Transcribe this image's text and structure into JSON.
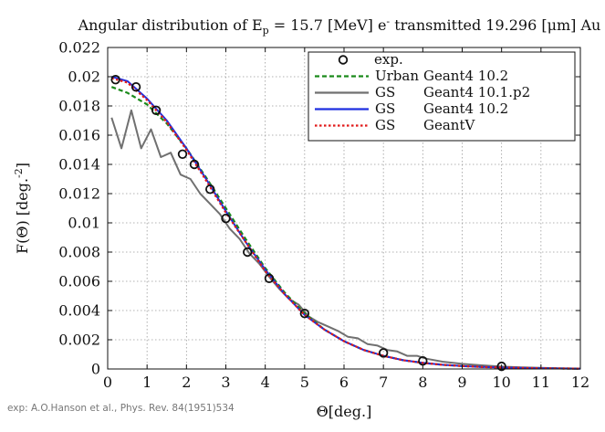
{
  "chart_data": {
    "type": "line",
    "title": {
      "prefix": "Angular distribution of E",
      "sub": "p",
      "middle": " = 15.7 [MeV] e",
      "sup": "-",
      "suffix": " transmitted 19.296 [μm] Au"
    },
    "xlabel": "Θ[deg.]",
    "ylabel": {
      "base": "F(Θ) [deg.",
      "sup": "-2",
      "end": "]"
    },
    "xlim": [
      0,
      12
    ],
    "ylim": [
      0,
      0.022
    ],
    "x_ticks": [
      "0",
      "1",
      "2",
      "3",
      "4",
      "5",
      "6",
      "7",
      "8",
      "9",
      "10",
      "11",
      "12"
    ],
    "y_ticks": [
      "0",
      "0.002",
      "0.004",
      "0.006",
      "0.008",
      "0.01",
      "0.012",
      "0.014",
      "0.016",
      "0.018",
      "0.02",
      "0.022"
    ],
    "grid": true,
    "legend_position": "top-right",
    "reference": "exp: A.O.Hanson et al., Phys. Rev. 84(1951)534",
    "series": [
      {
        "name": "exp.",
        "label_left": "exp.",
        "label_right": "",
        "style": "markers",
        "color": "#111111",
        "x": [
          0.2,
          0.72,
          1.23,
          1.9,
          2.2,
          2.6,
          3.0,
          3.55,
          4.1,
          5.0,
          7.0,
          8.0,
          10.0
        ],
        "y": [
          0.0198,
          0.0193,
          0.0177,
          0.0147,
          0.014,
          0.0123,
          0.0103,
          0.008,
          0.0062,
          0.0038,
          0.0011,
          0.00055,
          0.00018
        ]
      },
      {
        "name": "Urban Geant4 10.2",
        "label_left": "Urban",
        "label_right": "Geant4 10.2",
        "style": "dashed",
        "color": "#1a8a1a",
        "x": [
          0.1,
          0.5,
          1.0,
          1.5,
          2.0,
          2.5,
          3.0,
          3.5,
          4.0,
          4.5,
          5.0,
          5.5,
          6.0,
          6.5,
          7.0,
          7.5,
          8.0,
          8.5,
          9.0,
          9.5,
          10.0,
          11.0,
          12.0
        ],
        "y": [
          0.0193,
          0.0189,
          0.0181,
          0.0168,
          0.0151,
          0.0131,
          0.011,
          0.0089,
          0.0069,
          0.0052,
          0.0038,
          0.0027,
          0.0019,
          0.0013,
          0.0009,
          0.0006,
          0.00042,
          0.00029,
          0.0002,
          0.00014,
          0.0001,
          5e-05,
          2e-05
        ]
      },
      {
        "name": "GS Geant4 10.1.p2",
        "label_left": "GS",
        "label_right": "Geant4 10.1.p2",
        "style": "solid",
        "color": "#707070",
        "x": [
          0.1,
          0.35,
          0.6,
          0.85,
          1.1,
          1.35,
          1.6,
          1.85,
          2.1,
          2.35,
          2.6,
          2.85,
          3.1,
          3.35,
          3.6,
          3.85,
          4.1,
          4.35,
          4.6,
          4.85,
          5.1,
          5.35,
          5.6,
          5.85,
          6.1,
          6.35,
          6.6,
          6.85,
          7.1,
          7.35,
          7.6,
          7.85,
          8.1,
          8.5,
          9.0,
          9.5,
          10.0,
          10.5,
          11.0,
          11.5,
          12.0
        ],
        "y": [
          0.0172,
          0.0151,
          0.0177,
          0.0151,
          0.0164,
          0.0145,
          0.0148,
          0.0133,
          0.013,
          0.012,
          0.0113,
          0.0106,
          0.0096,
          0.0089,
          0.0079,
          0.0072,
          0.0063,
          0.0055,
          0.0048,
          0.0044,
          0.0036,
          0.0032,
          0.0029,
          0.0026,
          0.0022,
          0.0021,
          0.0017,
          0.0016,
          0.0013,
          0.0012,
          0.0009,
          0.0009,
          0.0007,
          0.0005,
          0.00035,
          0.00025,
          0.00016,
          0.00011,
          8e-05,
          5e-05,
          3e-05
        ]
      },
      {
        "name": "GS Geant4 10.2",
        "label_left": "GS",
        "label_right": "Geant4 10.2",
        "style": "solid",
        "color": "#1f2fe0",
        "x": [
          0.1,
          0.5,
          1.0,
          1.5,
          2.0,
          2.5,
          3.0,
          3.5,
          4.0,
          4.5,
          5.0,
          5.5,
          6.0,
          6.5,
          7.0,
          7.5,
          8.0,
          8.5,
          9.0,
          9.5,
          10.0,
          11.0,
          12.0
        ],
        "y": [
          0.02,
          0.0197,
          0.0185,
          0.017,
          0.0151,
          0.013,
          0.0108,
          0.0087,
          0.0068,
          0.0051,
          0.0037,
          0.0027,
          0.0019,
          0.0013,
          0.0009,
          0.0006,
          0.00042,
          0.00029,
          0.0002,
          0.00014,
          0.0001,
          5e-05,
          2e-05
        ]
      },
      {
        "name": "GS GeantV",
        "label_left": "GS",
        "label_right": "GeantV",
        "style": "dotted",
        "color": "#e11a1a",
        "x": [
          0.1,
          0.5,
          1.0,
          1.5,
          2.0,
          2.5,
          3.0,
          3.5,
          4.0,
          4.5,
          5.0,
          5.5,
          6.0,
          6.5,
          7.0,
          7.5,
          8.0,
          8.5,
          9.0,
          9.5,
          10.0,
          11.0,
          12.0
        ],
        "y": [
          0.0199,
          0.0196,
          0.0184,
          0.0169,
          0.015,
          0.0129,
          0.0107,
          0.0087,
          0.0067,
          0.0051,
          0.0037,
          0.0027,
          0.0019,
          0.0013,
          0.0009,
          0.0006,
          0.00042,
          0.00029,
          0.0002,
          0.00014,
          0.0001,
          5e-05,
          2e-05
        ]
      }
    ]
  }
}
